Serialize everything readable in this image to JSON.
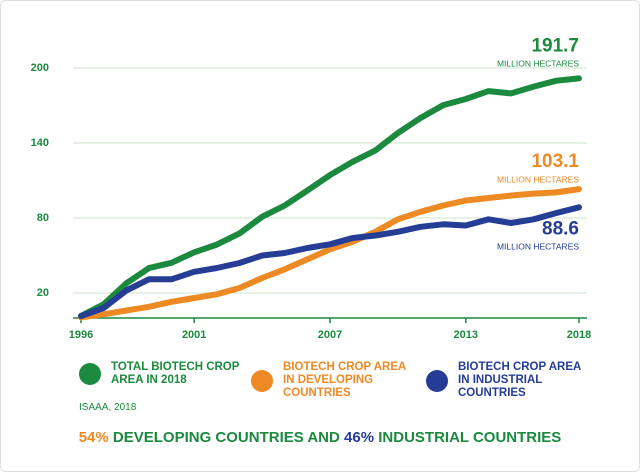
{
  "chart_data": {
    "type": "line",
    "x": [
      1996,
      1997,
      1998,
      1999,
      2000,
      2001,
      2002,
      2003,
      2004,
      2005,
      2006,
      2007,
      2008,
      2009,
      2010,
      2011,
      2012,
      2013,
      2014,
      2015,
      2016,
      2017,
      2018
    ],
    "series": [
      {
        "name": "TOTAL BIOTECH CROP AREA IN 2018",
        "color": "#1b8a3e",
        "values": [
          1.7,
          11,
          27.8,
          39.9,
          44.2,
          52.6,
          58.7,
          67.7,
          81,
          90,
          102,
          114.3,
          125,
          134,
          148,
          160,
          170.3,
          175.2,
          181.5,
          179.7,
          185.1,
          189.8,
          191.7
        ]
      },
      {
        "name": "BIOTECH CROP AREA IN DEVELOPING COUNTRIES",
        "color": "#ee8a24",
        "values": [
          0.5,
          3,
          6,
          9,
          13,
          16,
          19,
          24,
          32,
          39,
          47,
          55,
          61,
          69,
          79,
          85,
          90,
          94,
          96,
          98,
          99.5,
          100.5,
          103.1
        ]
      },
      {
        "name": "BIOTECH CROP AREA IN INDUSTRIAL COUNTRIES",
        "color": "#263d96",
        "values": [
          1.5,
          8,
          22,
          31,
          31,
          37,
          40,
          44,
          50,
          52,
          56,
          59,
          64,
          66,
          69,
          73,
          75,
          74,
          79,
          76,
          79,
          84,
          88.6
        ]
      }
    ],
    "unit_label": "MILLION HECTARES",
    "xlim": [
      1996,
      2018
    ],
    "xticks": [
      1996,
      2001,
      2007,
      2013,
      2018
    ],
    "ylim": [
      0,
      220
    ],
    "yticks": [
      20,
      80,
      140,
      200
    ],
    "grid": true,
    "source": "ISAAA, 2018",
    "footer": [
      {
        "text": "54%",
        "color": "#ee8a24"
      },
      {
        "text": " DEVELOPING COUNTRIES AND ",
        "color": "#1b8a3e"
      },
      {
        "text": "46%",
        "color": "#263d96"
      },
      {
        "text": " INDUSTRIAL COUNTRIES",
        "color": "#1b8a3e"
      }
    ]
  }
}
